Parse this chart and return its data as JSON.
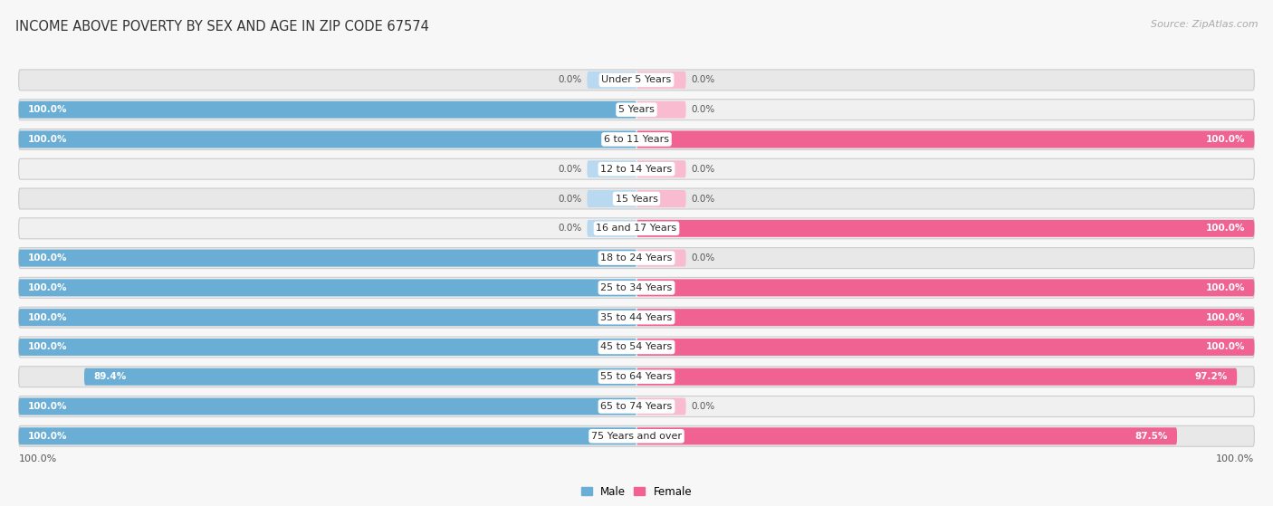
{
  "title": "INCOME ABOVE POVERTY BY SEX AND AGE IN ZIP CODE 67574",
  "source": "Source: ZipAtlas.com",
  "categories": [
    "Under 5 Years",
    "5 Years",
    "6 to 11 Years",
    "12 to 14 Years",
    "15 Years",
    "16 and 17 Years",
    "18 to 24 Years",
    "25 to 34 Years",
    "35 to 44 Years",
    "45 to 54 Years",
    "55 to 64 Years",
    "65 to 74 Years",
    "75 Years and over"
  ],
  "male": [
    0.0,
    100.0,
    100.0,
    0.0,
    0.0,
    0.0,
    100.0,
    100.0,
    100.0,
    100.0,
    89.4,
    100.0,
    100.0
  ],
  "female": [
    0.0,
    0.0,
    100.0,
    0.0,
    0.0,
    100.0,
    0.0,
    100.0,
    100.0,
    100.0,
    97.2,
    0.0,
    87.5
  ],
  "male_color": "#6aaed6",
  "female_color": "#f06292",
  "male_color_light": "#b8d9ef",
  "female_color_light": "#f8bbd0",
  "row_bg_dark": "#e8e8e8",
  "row_bg_light": "#f0f0f0",
  "bg_color": "#f7f7f7",
  "title_fontsize": 10.5,
  "source_fontsize": 8,
  "label_fontsize": 8,
  "value_fontsize": 7.5,
  "legend_fontsize": 8.5
}
